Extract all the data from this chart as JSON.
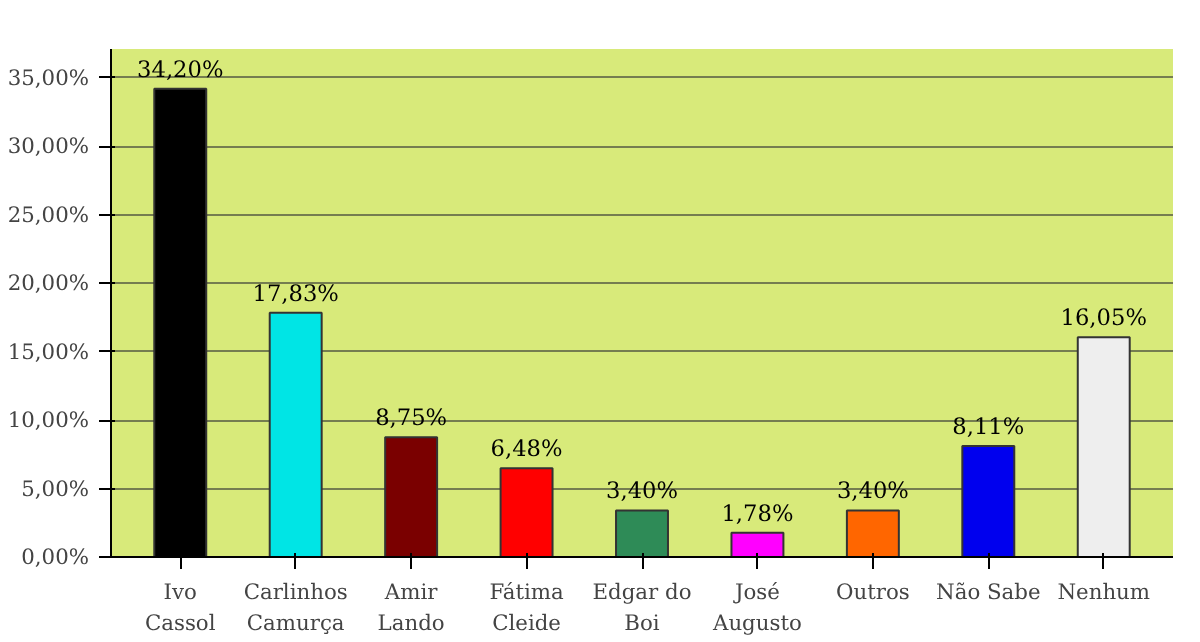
{
  "chart_data": {
    "type": "bar",
    "categories": [
      "Ivo\nCassol",
      "Carlinhos\nCamurça",
      "Amir\nLando",
      "Fátima\nCleide",
      "Edgar do\nBoi",
      "José\nAugusto",
      "Outros",
      "Não Sabe",
      "Nenhum"
    ],
    "values": [
      34.2,
      17.83,
      8.75,
      6.48,
      3.4,
      1.78,
      3.4,
      8.11,
      16.05
    ],
    "value_labels": [
      "34,20%",
      "17,83%",
      "8,75%",
      "6,48%",
      "3,40%",
      "1,78%",
      "3,40%",
      "8,11%",
      "16,05%"
    ],
    "colors": [
      "#000000",
      "#00e5e5",
      "#7a0000",
      "#ff0000",
      "#2e8b57",
      "#ff00ff",
      "#ff6600",
      "#0000ee",
      "#eeeeee"
    ],
    "ylim": [
      0,
      35
    ],
    "yticks": [
      {
        "value": 0,
        "label": "0,00%"
      },
      {
        "value": 5,
        "label": "5,00%"
      },
      {
        "value": 10,
        "label": "10,00%"
      },
      {
        "value": 15,
        "label": "15,00%"
      },
      {
        "value": 20,
        "label": "20,00%"
      },
      {
        "value": 25,
        "label": "25,00%"
      },
      {
        "value": 30,
        "label": "30,00%"
      },
      {
        "value": 35,
        "label": "35,00%"
      }
    ],
    "grid": "y"
  }
}
